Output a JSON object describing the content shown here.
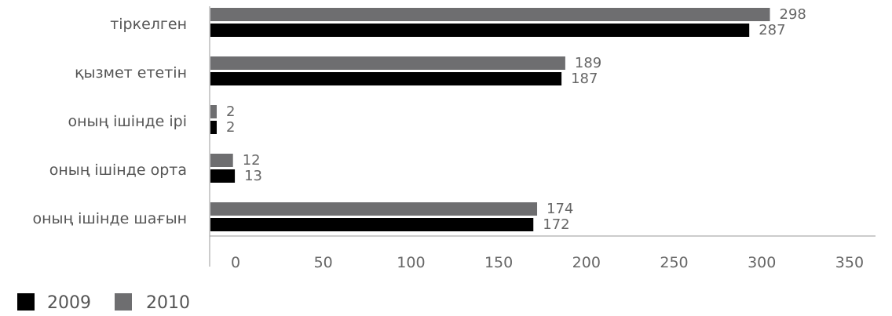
{
  "chart_data": {
    "type": "bar",
    "orientation": "horizontal",
    "categories": [
      "тіркелген",
      "қызмет ететін",
      "оның ішінде ірі",
      "оның ішінде орта",
      "оның ішінде шағын"
    ],
    "series": [
      {
        "name": "2010",
        "values": [
          298,
          189,
          2,
          12,
          174
        ],
        "color": "#6e6e70"
      },
      {
        "name": "2009",
        "values": [
          287,
          187,
          2,
          13,
          172
        ],
        "color": "#000000"
      }
    ],
    "xlim": [
      0,
      350
    ],
    "xticks": [
      0,
      50,
      100,
      150,
      200,
      250,
      300,
      350
    ],
    "grid": false,
    "legend": {
      "position": "bottom-left",
      "items": [
        {
          "label": "2009",
          "color": "#000000"
        },
        {
          "label": "2010",
          "color": "#6e6e70"
        }
      ]
    }
  }
}
